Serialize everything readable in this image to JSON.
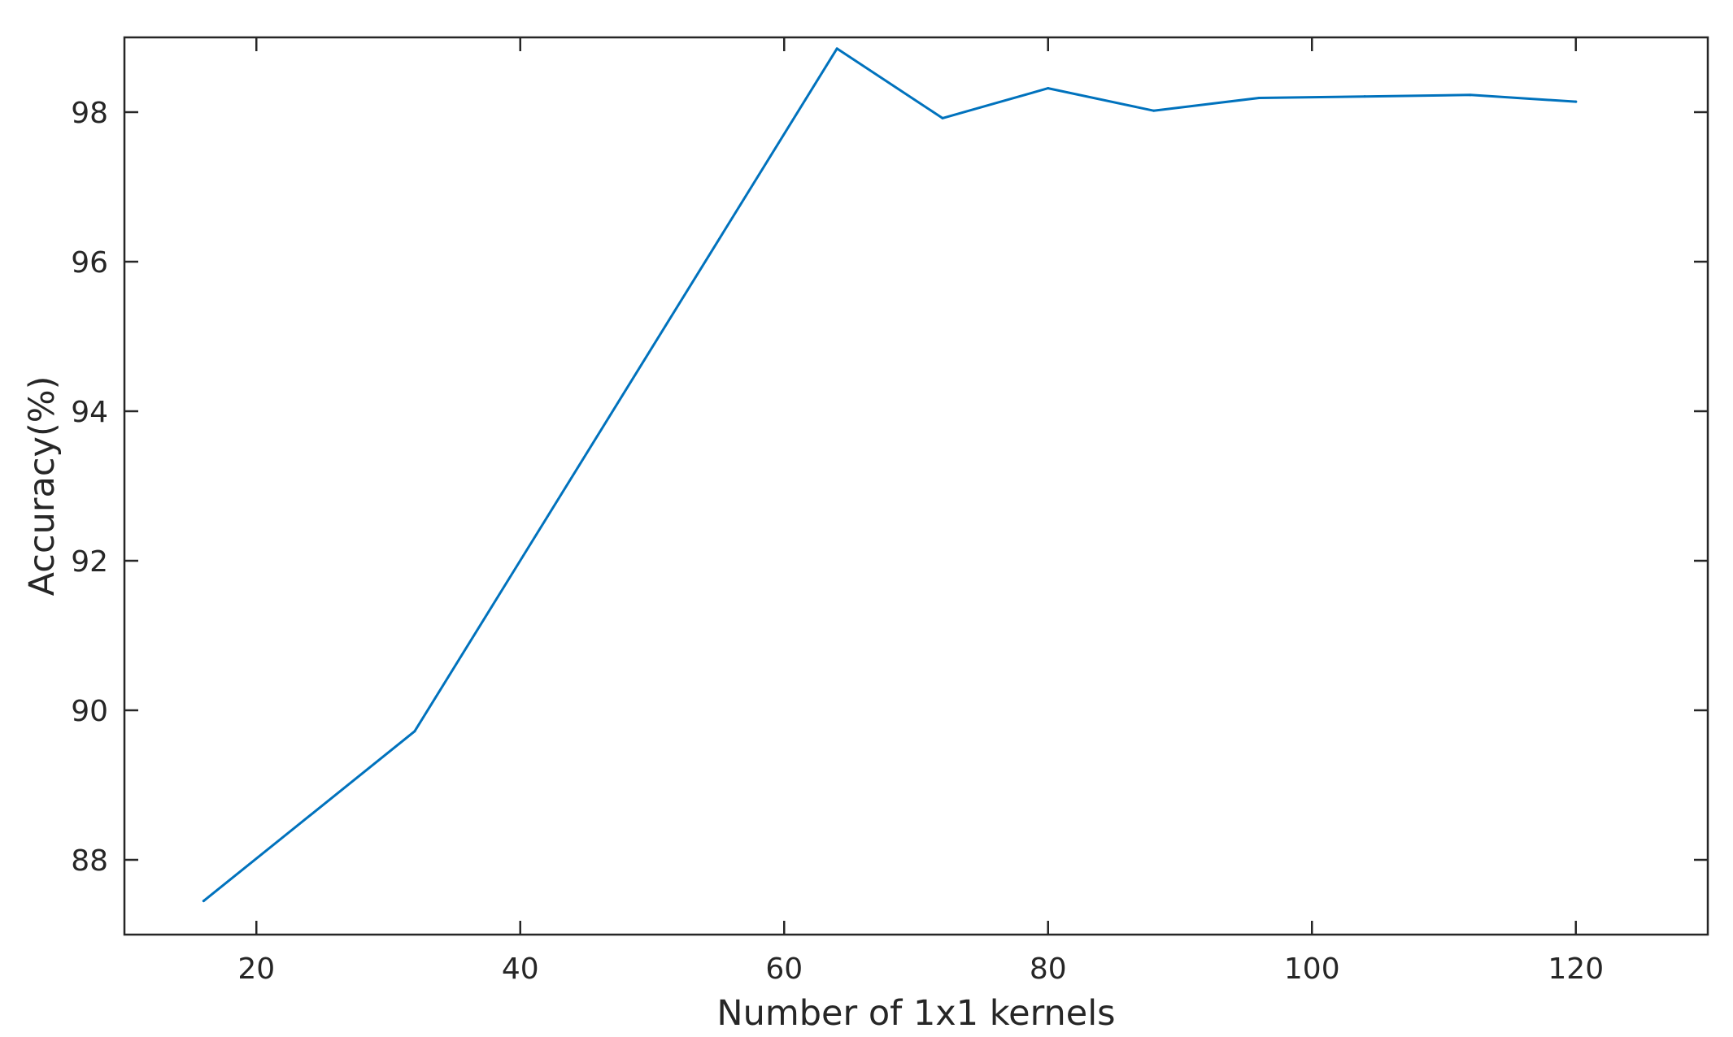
{
  "chart_data": {
    "type": "line",
    "title": "",
    "xlabel": "Number of 1x1 kernels",
    "ylabel": "Accuracy(%)",
    "xlim": [
      10,
      130
    ],
    "ylim": [
      87,
      99
    ],
    "xticks": [
      20,
      40,
      60,
      80,
      100,
      120
    ],
    "yticks": [
      88,
      90,
      92,
      94,
      96,
      98
    ],
    "grid": false,
    "legend": "none",
    "series": [
      {
        "color": "#0072BD",
        "x": [
          16,
          32,
          64,
          72,
          80,
          88,
          96,
          104,
          112,
          120
        ],
        "y": [
          87.45,
          89.72,
          98.85,
          97.92,
          98.32,
          98.02,
          98.19,
          98.21,
          98.23,
          98.14
        ]
      }
    ]
  }
}
